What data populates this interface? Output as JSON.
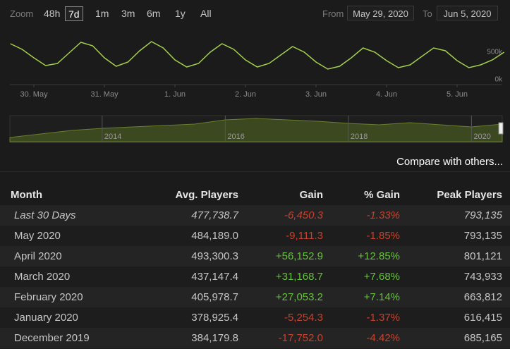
{
  "toolbar": {
    "zoom_label": "Zoom",
    "zoom_options": [
      "48h",
      "7d",
      "1m",
      "3m",
      "6m",
      "1y",
      "All"
    ],
    "selected": 1
  },
  "date_range": {
    "from_label": "From",
    "from": "May 29, 2020",
    "to_label": "To",
    "to": "Jun 5, 2020"
  },
  "chart_data": [
    {
      "type": "line",
      "color": "#a3cf4a",
      "categories": [
        null,
        null,
        "30. May",
        null,
        null,
        null,
        null,
        null,
        "31. May",
        null,
        null,
        null,
        null,
        null,
        "1. Jun",
        null,
        null,
        null,
        null,
        null,
        "2. Jun",
        null,
        null,
        null,
        null,
        null,
        "3. Jun",
        null,
        null,
        null,
        null,
        null,
        "4. Jun",
        null,
        null,
        null,
        null,
        null,
        "5. Jun",
        null,
        null,
        null,
        null
      ],
      "values": [
        654000,
        551000,
        397000,
        256000,
        295000,
        487000,
        679000,
        615000,
        397000,
        244000,
        321000,
        526000,
        692000,
        577000,
        359000,
        231000,
        295000,
        500000,
        654000,
        551000,
        359000,
        231000,
        295000,
        449000,
        603000,
        500000,
        321000,
        192000,
        244000,
        397000,
        577000,
        500000,
        346000,
        218000,
        269000,
        423000,
        577000,
        526000,
        346000,
        218000,
        269000,
        359000,
        500000
      ],
      "ylim": [
        0,
        900000
      ],
      "yticks": [
        {
          "value": 0,
          "label": "0k"
        },
        {
          "value": 500000,
          "label": "500k"
        }
      ]
    },
    {
      "type": "area",
      "color": "#3b4820",
      "categories": [
        null,
        null,
        null,
        "2014",
        null,
        null,
        null,
        "2016",
        null,
        null,
        null,
        "2018",
        null,
        null,
        null,
        "2020",
        null
      ],
      "values": [
        150000,
        275000,
        400000,
        475000,
        525000,
        575000,
        625000,
        775000,
        825000,
        775000,
        725000,
        650000,
        600000,
        675000,
        600000,
        525000,
        625000
      ],
      "ylim": [
        0,
        1000000
      ]
    }
  ],
  "compare_link": "Compare with others...",
  "table": {
    "headers": [
      "Month",
      "Avg. Players",
      "Gain",
      "% Gain",
      "Peak Players"
    ],
    "rows": [
      [
        "Last 30 Days",
        "477,738.7",
        "-6,450.3",
        "-1.33%",
        "793,135"
      ],
      [
        "May 2020",
        "484,189.0",
        "-9,111.3",
        "-1.85%",
        "793,135"
      ],
      [
        "April 2020",
        "493,300.3",
        "+56,152.9",
        "+12.85%",
        "801,121"
      ],
      [
        "March 2020",
        "437,147.4",
        "+31,168.7",
        "+7.68%",
        "743,933"
      ],
      [
        "February 2020",
        "405,978.7",
        "+27,053.2",
        "+7.14%",
        "663,812"
      ],
      [
        "January 2020",
        "378,925.4",
        "-5,254.3",
        "-1.37%",
        "616,415"
      ],
      [
        "December 2019",
        "384,179.8",
        "-17,752.0",
        "-4.42%",
        "685,165"
      ]
    ]
  }
}
